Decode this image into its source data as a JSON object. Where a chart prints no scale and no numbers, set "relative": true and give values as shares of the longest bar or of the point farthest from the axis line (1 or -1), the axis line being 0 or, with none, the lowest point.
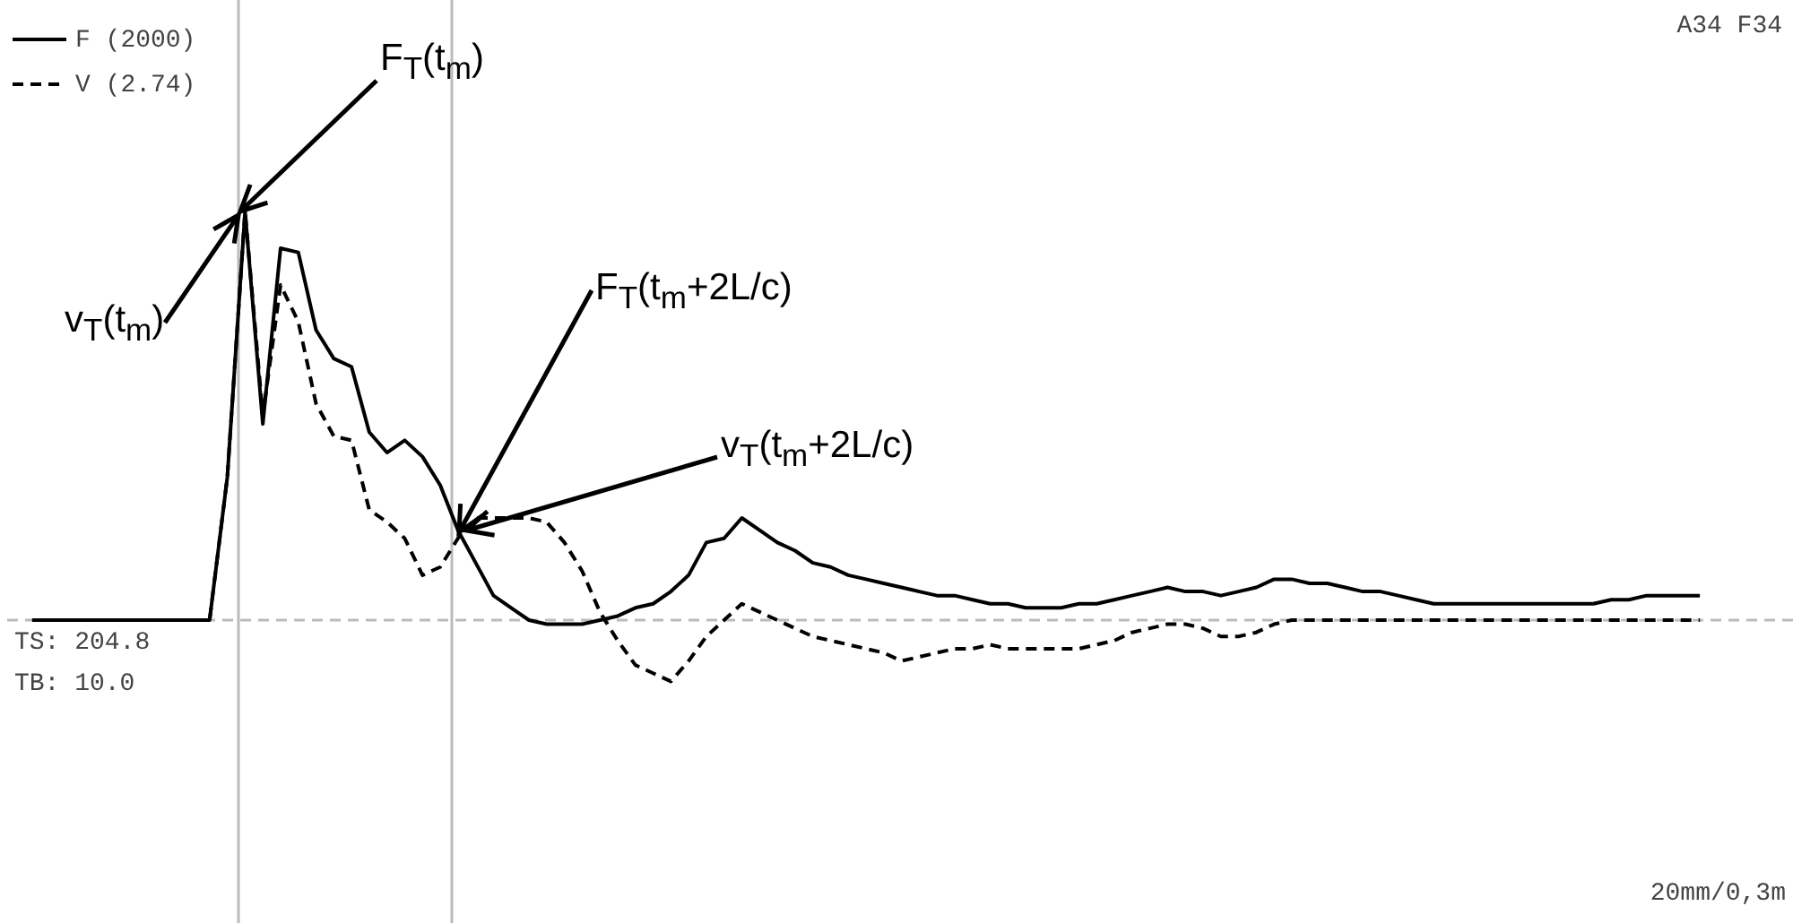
{
  "chart_data": {
    "type": "line",
    "relative": true,
    "legend": "top left",
    "categories": [
      null,
      null,
      null,
      null,
      null,
      null,
      null,
      null,
      null,
      null,
      null,
      null,
      null,
      null,
      null,
      null,
      null,
      null,
      null,
      null,
      null,
      null,
      null,
      null,
      null,
      null,
      null,
      null,
      null,
      null,
      null,
      null,
      null,
      null,
      null,
      null,
      null,
      null,
      null,
      null,
      null,
      null,
      null,
      null,
      null,
      null,
      null,
      null,
      null,
      null,
      null,
      null,
      null,
      null,
      null,
      null,
      null,
      null,
      null,
      null,
      null,
      null,
      null,
      null,
      null,
      null,
      null,
      null,
      null,
      null,
      null,
      null,
      null,
      null,
      null,
      null,
      null,
      null,
      null,
      null,
      null,
      null,
      null,
      null,
      null,
      null,
      null,
      null,
      null,
      null,
      null,
      null,
      null,
      null,
      null
    ],
    "series": [
      {
        "name": "F (2000)",
        "color": "#000000",
        "line_style": "solid",
        "values": [
          0,
          0,
          0,
          0,
          0,
          0,
          0,
          0,
          0,
          0,
          0,
          0.35,
          1,
          0.48,
          0.91,
          0.9,
          0.71,
          0.64,
          0.62,
          0.46,
          0.41,
          0.44,
          0.4,
          0.33,
          0.22,
          0.14,
          0.06,
          0.03,
          0,
          -0.01,
          -0.01,
          -0.01,
          0,
          0.01,
          0.03,
          0.04,
          0.07,
          0.11,
          0.19,
          0.2,
          0.25,
          0.22,
          0.19,
          0.17,
          0.14,
          0.13,
          0.11,
          0.1,
          0.09,
          0.08,
          0.07,
          0.06,
          0.06,
          0.05,
          0.04,
          0.04,
          0.03,
          0.03,
          0.03,
          0.04,
          0.04,
          0.05,
          0.06,
          0.07,
          0.08,
          0.07,
          0.07,
          0.06,
          0.07,
          0.08,
          0.1,
          0.1,
          0.09,
          0.09,
          0.08,
          0.07,
          0.07,
          0.06,
          0.05,
          0.04,
          0.04,
          0.04,
          0.04,
          0.04,
          0.04,
          0.04,
          0.04,
          0.04,
          0.04,
          0.05,
          0.05,
          0.06,
          0.06,
          0.06,
          0.06
        ]
      },
      {
        "name": "V (2.74)",
        "color": "#000000",
        "line_style": "dashed",
        "values": [
          0,
          0,
          0,
          0,
          0,
          0,
          0,
          0,
          0,
          0,
          0,
          0.35,
          1,
          0.5,
          0.82,
          0.73,
          0.53,
          0.45,
          0.44,
          0.27,
          0.24,
          0.2,
          0.11,
          0.13,
          0.2,
          0.25,
          0.25,
          0.25,
          0.25,
          0.24,
          0.19,
          0.12,
          0.02,
          -0.05,
          -0.11,
          -0.13,
          -0.15,
          -0.1,
          -0.04,
          0,
          0.04,
          0.02,
          0,
          -0.02,
          -0.04,
          -0.05,
          -0.06,
          -0.07,
          -0.08,
          -0.1,
          -0.09,
          -0.08,
          -0.07,
          -0.07,
          -0.06,
          -0.07,
          -0.07,
          -0.07,
          -0.07,
          -0.07,
          -0.06,
          -0.05,
          -0.03,
          -0.02,
          -0.01,
          -0.01,
          -0.02,
          -0.04,
          -0.04,
          -0.03,
          -0.01,
          0,
          0,
          0,
          0,
          0,
          0,
          0,
          0,
          0,
          0,
          0,
          0,
          0,
          0,
          0,
          0,
          0,
          0,
          0,
          0,
          0,
          0,
          0,
          0
        ]
      }
    ],
    "ref_lines": [
      {
        "axis": "y",
        "value": 0,
        "color": "#bbbbbb",
        "line_style": "dashed"
      }
    ],
    "annotations": [
      "F$_{T}$(t$_{m}$)",
      "v$_{T}$(t$_{m}$)",
      "F$_{T}$(t$_{m}$+2L/c)",
      "v$_{T}$(t$_{m}$+2L/c)",
      "A34 F34",
      "TS: 204.8",
      "TB: 10.0",
      "20mm/0,3m"
    ]
  }
}
